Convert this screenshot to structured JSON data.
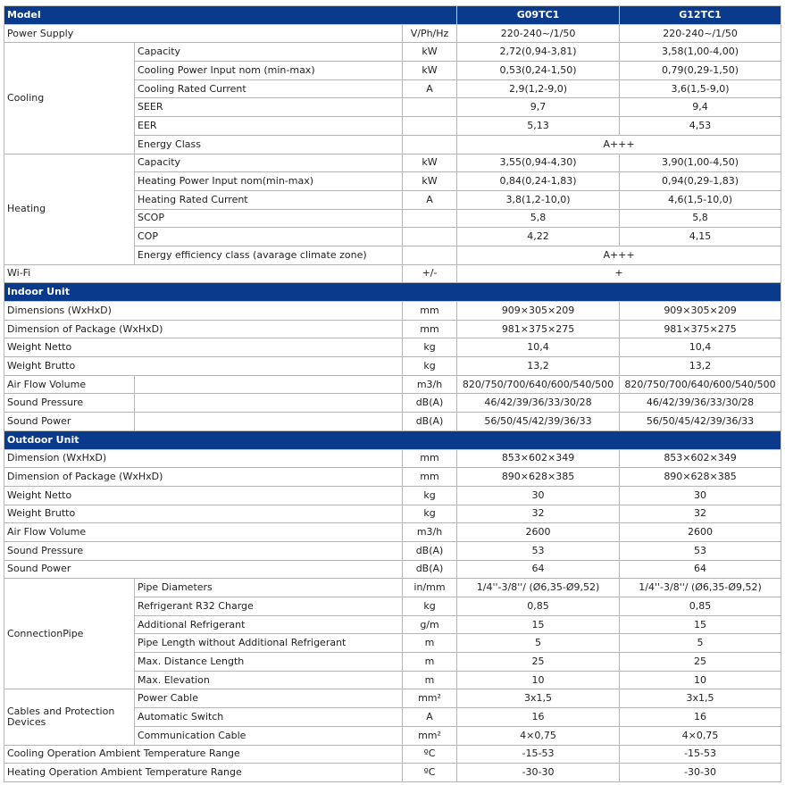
{
  "header": {
    "label": "Model",
    "models": [
      "G09TC1",
      "G12TC1"
    ]
  },
  "colors": {
    "header_bg": "#0a3a8c",
    "header_text": "#ffffff",
    "border": "#b5b5b5"
  },
  "sections": [
    {
      "title": "",
      "rows": [
        {
          "label": "Power Supply",
          "unit": "V/Ph/Hz",
          "g09": "220-240~/1/50",
          "g12": "220-240~/1/50"
        },
        {
          "group": "Cooling",
          "items": [
            {
              "param": "Capacity",
              "unit": "kW",
              "g09": "2,72(0,94-3,81)",
              "g12": "3,58(1,00-4,00)"
            },
            {
              "param": "Cooling Power Input nom (min-max)",
              "unit": "kW",
              "g09": "0,53(0,24-1,50)",
              "g12": "0,79(0,29-1,50)"
            },
            {
              "param": "Cooling Rated Current",
              "unit": "A",
              "g09": "2,9(1,2-9,0)",
              "g12": "3,6(1,5-9,0)"
            },
            {
              "param": "SEER",
              "unit": "",
              "g09": "9,7",
              "g12": "9,4"
            },
            {
              "param": "EER",
              "unit": "",
              "g09": "5,13",
              "g12": "4,53"
            },
            {
              "param": "Energy Class",
              "unit": "",
              "value": "A+++"
            }
          ]
        },
        {
          "group": "Heating",
          "items": [
            {
              "param": "Capacity",
              "unit": "kW",
              "g09": "3,55(0,94-4,30)",
              "g12": "3,90(1,00-4,50)"
            },
            {
              "param": "Heating Power Input nom(min-max)",
              "unit": "kW",
              "g09": "0,84(0,24-1,83)",
              "g12": "0,94(0,29-1,83)"
            },
            {
              "param": "Heating Rated Current",
              "unit": "A",
              "g09": "3,8(1,2-10,0)",
              "g12": "4,6(1,5-10,0)"
            },
            {
              "param": "SCOP",
              "unit": "",
              "g09": "5,8",
              "g12": "5,8"
            },
            {
              "param": "COP",
              "unit": "",
              "g09": "4,22",
              "g12": "4,15"
            },
            {
              "param": "Energy efficiency class (avarage climate zone)",
              "unit": "",
              "value": "A+++"
            }
          ]
        },
        {
          "label": "Wi-Fi",
          "unit": "+/-",
          "value": "+"
        }
      ]
    },
    {
      "title": "Indoor Unit",
      "rows": [
        {
          "label": "Dimensions (WxHxD)",
          "unit": "mm",
          "g09": "909×305×209",
          "g12": "909×305×209"
        },
        {
          "label": "Dimension of Package (WxHxD)",
          "unit": "mm",
          "g09": "981×375×275",
          "g12": "981×375×275"
        },
        {
          "label": "Weight Netto",
          "unit": "kg",
          "g09": "10,4",
          "g12": "10,4"
        },
        {
          "label": "Weight Brutto",
          "unit": "kg",
          "g09": "13,2",
          "g12": "13,2"
        },
        {
          "label": "Air Flow Volume",
          "sub": true,
          "unit": "m3/h",
          "g09": "820/750/700/640/600/540/500",
          "g12": "820/750/700/640/600/540/500"
        },
        {
          "label": "Sound Pressure",
          "sub": true,
          "unit": "dB(A)",
          "g09": "46/42/39/36/33/30/28",
          "g12": "46/42/39/36/33/30/28"
        },
        {
          "label": "Sound Power",
          "sub": true,
          "unit": "dB(A)",
          "g09": "56/50/45/42/39/36/33",
          "g12": "56/50/45/42/39/36/33"
        }
      ]
    },
    {
      "title": "Outdoor Unit",
      "rows": [
        {
          "label": "Dimension (WxHxD)",
          "unit": "mm",
          "g09": "853×602×349",
          "g12": "853×602×349"
        },
        {
          "label": "Dimension of Package (WxHxD)",
          "unit": "mm",
          "g09": "890×628×385",
          "g12": "890×628×385"
        },
        {
          "label": "Weight Netto",
          "unit": "kg",
          "g09": "30",
          "g12": "30"
        },
        {
          "label": "Weight Brutto",
          "unit": "kg",
          "g09": "32",
          "g12": "32"
        },
        {
          "label": "Air Flow Volume",
          "unit": "m3/h",
          "g09": "2600",
          "g12": "2600"
        },
        {
          "label": "Sound Pressure",
          "unit": "dB(A)",
          "g09": "53",
          "g12": "53"
        },
        {
          "label": "Sound Power",
          "unit": "dB(A)",
          "g09": "64",
          "g12": "64"
        },
        {
          "group": "ConnectionPipe",
          "items": [
            {
              "param": "Pipe Diameters",
              "unit": "in/mm",
              "g09": "1/4''-3/8''/ (Ø6,35-Ø9,52)",
              "g12": "1/4''-3/8''/ (Ø6,35-Ø9,52)"
            },
            {
              "param": "Refrigerant R32 Charge",
              "unit": "kg",
              "g09": "0,85",
              "g12": "0,85"
            },
            {
              "param": "Additional Refrigerant",
              "unit": "g/m",
              "g09": "15",
              "g12": "15"
            },
            {
              "param": "Pipe Length without Additional Refrigerant",
              "unit": "m",
              "g09": "5",
              "g12": "5"
            },
            {
              "param": "Max. Distance Length",
              "unit": "m",
              "g09": "25",
              "g12": "25"
            },
            {
              "param": "Max. Elevation",
              "unit": "m",
              "g09": "10",
              "g12": "10"
            }
          ]
        },
        {
          "group": "Cables and Protection Devices",
          "items": [
            {
              "param": "Power Cable",
              "unit": "mm²",
              "g09": "3x1,5",
              "g12": "3x1,5"
            },
            {
              "param": "Automatic Switch",
              "unit": "A",
              "g09": "16",
              "g12": "16"
            },
            {
              "param": "Communication Cable",
              "unit": "mm²",
              "g09": "4×0,75",
              "g12": "4×0,75"
            }
          ]
        },
        {
          "label": "Cooling Operation Ambient Temperature Range",
          "unit": "ºC",
          "g09": "-15-53",
          "g12": "-15-53"
        },
        {
          "label": "Heating Operation Ambient Temperature Range",
          "unit": "ºC",
          "g09": "-30-30",
          "g12": "-30-30"
        }
      ]
    }
  ]
}
